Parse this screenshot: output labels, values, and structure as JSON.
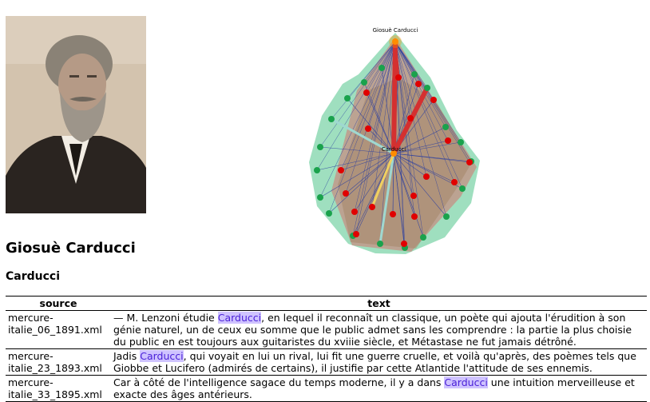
{
  "person": {
    "name": "Giosuè Carducci",
    "keyword": "Carducci"
  },
  "graph": {
    "top_label": "Giosuè Carducci",
    "center_label": "Carducci",
    "colors": {
      "hull_green": "#3fbf7f",
      "hull_red": "#e05a5a",
      "hull_brown": "#a08060",
      "node_green": "#1aa24c",
      "node_red": "#e00000",
      "node_orange": "#ff8c00",
      "edge_blue": "#2b3fa0",
      "edge_red": "#d43030",
      "edge_teal": "#9fd8d0",
      "edge_yellow": "#f0d060"
    }
  },
  "table": {
    "headers": {
      "source": "source",
      "text": "text"
    },
    "rows": [
      {
        "source": "mercure-italie_06_1891.xml",
        "pre": "— M. Lenzoni étudie ",
        "hit": "Carducci",
        "post": ", en lequel il reconnaît un classique, un poète qui ajouta l'érudition à son génie naturel, un de ceux eu somme que le public admet sans les comprendre : la partie la plus choisie du public en est toujours aux guitaristes du xviiie siècle, et Métastase ne fut jamais détrôné."
      },
      {
        "source": "mercure-italie_23_1893.xml",
        "pre": "Jadis ",
        "hit": "Carducci",
        "post": ", qui voyait en lui un rival, lui fit une guerre cruelle, et voilà qu'après, des poèmes tels que Giobbe et Lucifero (admirés de certains), il justifie par cette Atlantide l'attitude de ses ennemis."
      },
      {
        "source": "mercure-italie_33_1895.xml",
        "pre": "Car à côté de l'intelligence sagace du temps moderne, il y a dans ",
        "hit": "Carducci",
        "post": " une intuition merveilleuse et exacte des âges antérieurs."
      }
    ]
  }
}
